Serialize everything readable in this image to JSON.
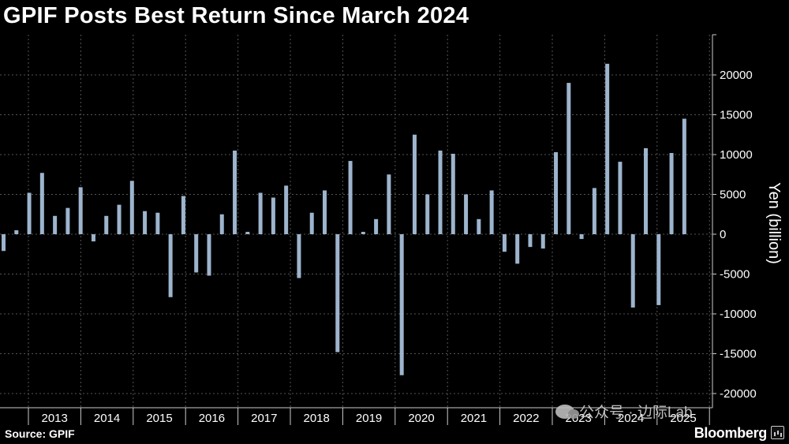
{
  "title": "GPIF Posts Best Return Since March 2024",
  "source": "Source: GPIF",
  "brand": "Bloomberg",
  "watermark": "公众号 · 边际Lab",
  "chart_data": {
    "type": "bar",
    "title": "GPIF Posts Best Return Since March 2024",
    "ylabel": "Yen (billion)",
    "xlabel": "",
    "ylim": [
      -20000,
      25000
    ],
    "yticks": [
      -20000,
      -15000,
      -10000,
      -5000,
      0,
      5000,
      10000,
      15000,
      20000
    ],
    "x_year_labels": [
      "2013",
      "2014",
      "2015",
      "2016",
      "2017",
      "2018",
      "2019",
      "2020",
      "2021",
      "2022",
      "2023",
      "2024",
      "2025"
    ],
    "grid": true,
    "bar_color": "#9db4cd",
    "series": [
      {
        "values": [
          -2100,
          500,
          5200,
          7700,
          2300,
          3300,
          5900,
          -900,
          2300,
          3700,
          6700,
          2900,
          2700,
          -7900,
          4800,
          -4800,
          -5200,
          2500,
          10500,
          300,
          5200,
          4600,
          6100,
          -5500,
          2700,
          5500,
          -14800,
          9200,
          300,
          1900,
          7500,
          -17700,
          12500,
          5000,
          10500,
          10100,
          5000,
          1900,
          5500,
          -2200,
          -3700,
          -1600,
          -1800,
          10300,
          19000,
          -600,
          5800,
          21400,
          9100,
          -9200,
          10800,
          -8900,
          10200,
          14500
        ]
      }
    ]
  }
}
